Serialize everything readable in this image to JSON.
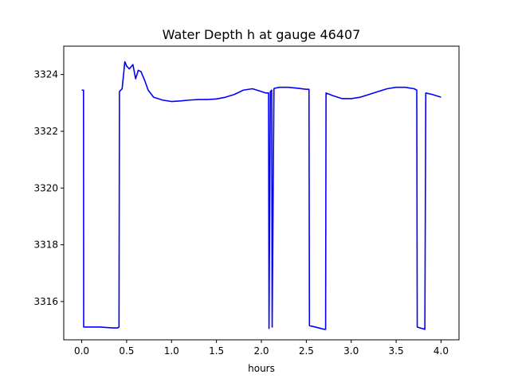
{
  "chart_data": {
    "type": "line",
    "title": "Water Depth h at gauge 46407",
    "xlabel": "hours",
    "ylabel": "",
    "xlim": [
      -0.2,
      4.2
    ],
    "ylim": [
      3314.65,
      3325.0
    ],
    "xticks": [
      0.0,
      0.5,
      1.0,
      1.5,
      2.0,
      2.5,
      3.0,
      3.5,
      4.0
    ],
    "xtick_labels": [
      "0.0",
      "0.5",
      "1.0",
      "1.5",
      "2.0",
      "2.5",
      "3.0",
      "3.5",
      "4.0"
    ],
    "yticks": [
      3316,
      3318,
      3320,
      3322,
      3324
    ],
    "ytick_labels": [
      "3316",
      "3318",
      "3320",
      "3322",
      "3324"
    ],
    "grid": false,
    "series": [
      {
        "color": "#0000ff",
        "x": [
          0.0,
          0.02,
          0.022,
          0.1,
          0.2,
          0.3,
          0.35,
          0.4,
          0.415,
          0.42,
          0.45,
          0.48,
          0.5,
          0.53,
          0.57,
          0.6,
          0.63,
          0.66,
          0.7,
          0.74,
          0.8,
          0.9,
          1.0,
          1.1,
          1.2,
          1.3,
          1.4,
          1.5,
          1.6,
          1.7,
          1.8,
          1.9,
          1.95,
          2.0,
          2.05,
          2.08,
          2.085,
          2.1,
          2.115,
          2.12,
          2.14,
          2.15,
          2.155,
          2.2,
          2.3,
          2.4,
          2.5,
          2.53,
          2.535,
          2.6,
          2.7,
          2.715,
          2.72,
          2.8,
          2.9,
          3.0,
          3.1,
          3.2,
          3.3,
          3.4,
          3.5,
          3.6,
          3.7,
          3.73,
          3.735,
          3.82,
          3.83,
          3.9,
          4.0
        ],
        "y": [
          3323.45,
          3323.45,
          3315.1,
          3315.1,
          3315.1,
          3315.08,
          3315.07,
          3315.07,
          3315.1,
          3323.4,
          3323.5,
          3324.45,
          3324.3,
          3324.2,
          3324.35,
          3323.85,
          3324.15,
          3324.1,
          3323.8,
          3323.45,
          3323.2,
          3323.1,
          3323.05,
          3323.07,
          3323.1,
          3323.12,
          3323.12,
          3323.14,
          3323.2,
          3323.3,
          3323.45,
          3323.5,
          3323.45,
          3323.4,
          3323.35,
          3323.35,
          3315.05,
          3323.4,
          3323.45,
          3315.1,
          3323.5,
          3323.52,
          3323.52,
          3323.55,
          3323.55,
          3323.52,
          3323.48,
          3323.48,
          3315.15,
          3315.1,
          3315.02,
          3315.02,
          3323.35,
          3323.25,
          3323.15,
          3323.15,
          3323.2,
          3323.3,
          3323.4,
          3323.5,
          3323.55,
          3323.55,
          3323.5,
          3323.45,
          3315.1,
          3315.02,
          3323.35,
          3323.3,
          3323.2
        ]
      }
    ]
  }
}
